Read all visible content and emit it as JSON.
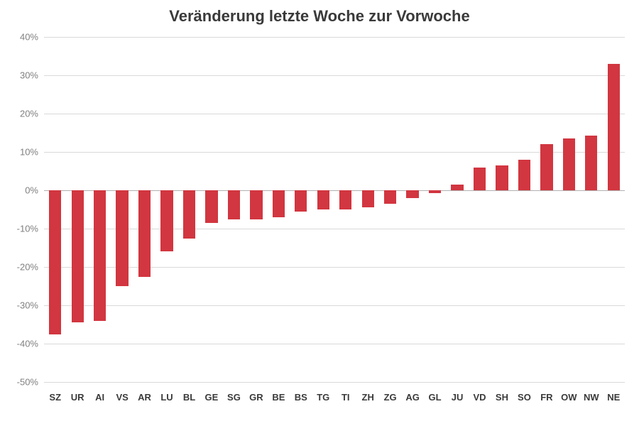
{
  "chart": {
    "type": "bar",
    "title": "Veränderung letzte Woche zur Vorwoche",
    "title_fontsize": 22,
    "title_color": "#3a3a3a",
    "background_color": "#ffffff",
    "categories": [
      "SZ",
      "UR",
      "AI",
      "VS",
      "AR",
      "LU",
      "BL",
      "GE",
      "SG",
      "GR",
      "BE",
      "BS",
      "TG",
      "TI",
      "ZH",
      "ZG",
      "AG",
      "GL",
      "JU",
      "VD",
      "SH",
      "SO",
      "FR",
      "OW",
      "NW",
      "NE"
    ],
    "values": [
      -37.5,
      -34.5,
      -34.0,
      -25.0,
      -22.5,
      -16.0,
      -12.5,
      -8.5,
      -7.5,
      -7.5,
      -7.0,
      -5.5,
      -5.0,
      -5.0,
      -4.5,
      -3.5,
      -2.0,
      -0.7,
      1.5,
      6.0,
      6.5,
      8.0,
      12.0,
      13.5,
      14.2,
      33.0
    ],
    "bar_color": "#d23640",
    "ylim": [
      -50,
      40
    ],
    "ytick_step": 10,
    "ytick_format_suffix": "%",
    "grid_color": "#d9d9d9",
    "zero_line_color": "#b0b0b0",
    "label_fontsize": 13,
    "ytick_fontsize": 13,
    "xlabel_fontsize": 13,
    "bar_width_ratio": 0.55
  }
}
